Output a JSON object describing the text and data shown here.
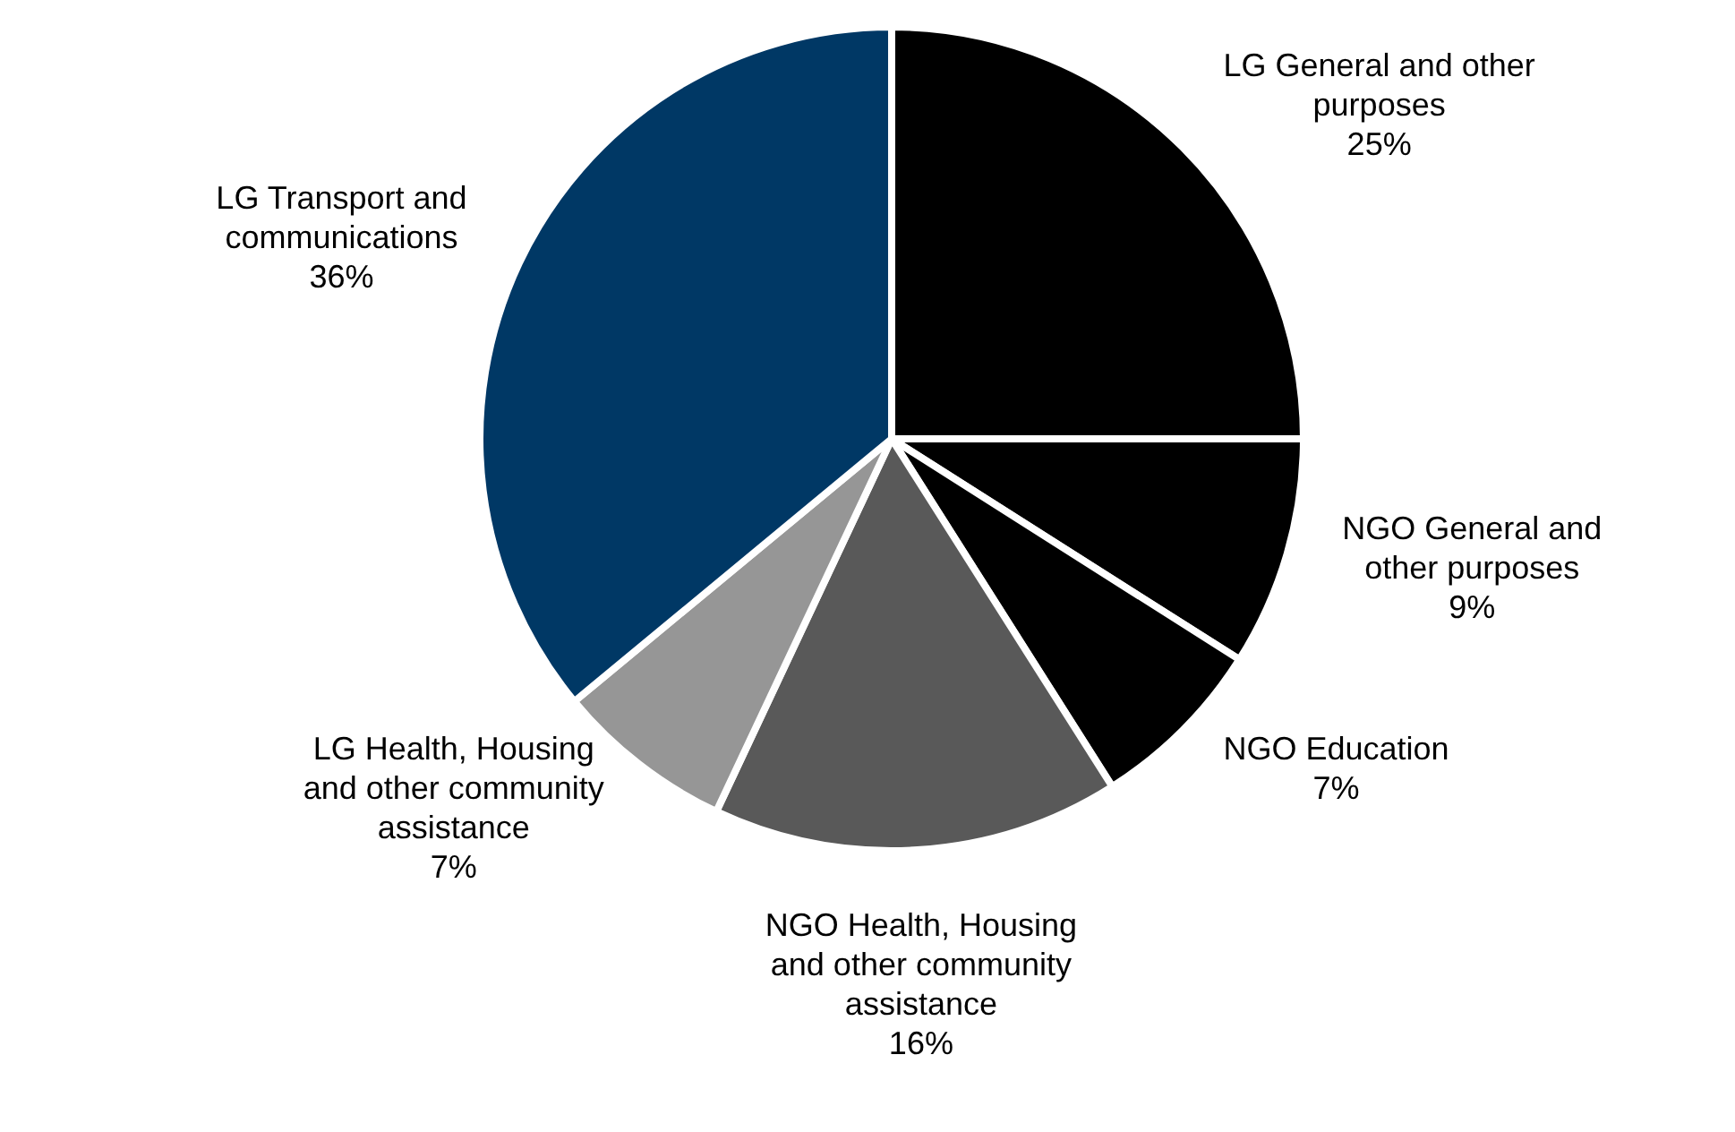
{
  "chart_data": {
    "type": "pie",
    "categories": [
      "LG General and other purposes",
      "NGO General and other purposes",
      "NGO Education",
      "NGO Health, Housing and other community assistance",
      "LG Health, Housing and other community assistance",
      "LG Transport and communications"
    ],
    "values": [
      25,
      9,
      7,
      16,
      7,
      36
    ],
    "colors": [
      "#000000",
      "#000000",
      "#000000",
      "#595959",
      "#969696",
      "#003865"
    ],
    "value_labels": [
      "25%",
      "9%",
      "7%",
      "16%",
      "7%",
      "36%"
    ],
    "legend": false
  }
}
